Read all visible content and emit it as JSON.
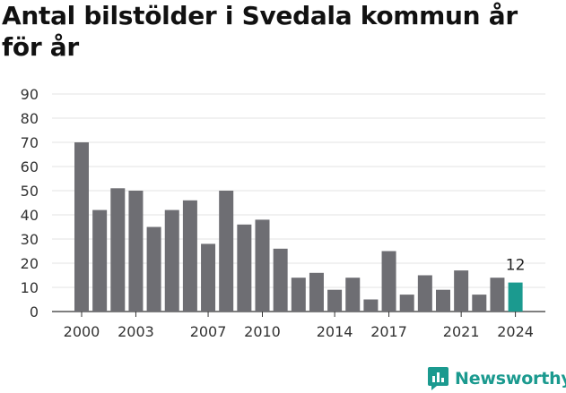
{
  "title": "Antal bilstölder i Svedala kommun år för år",
  "brand": {
    "name": "Newsworthy",
    "icon": "newsworthy-logo-icon",
    "color": "#1b9a8f"
  },
  "chart_data": {
    "type": "bar",
    "title": "Antal bilstölder i Svedala kommun år för år",
    "xlabel": "",
    "ylabel": "",
    "categories": [
      "2000",
      "2001",
      "2002",
      "2003",
      "2004",
      "2005",
      "2006",
      "2007",
      "2008",
      "2009",
      "2010",
      "2011",
      "2012",
      "2013",
      "2014",
      "2015",
      "2016",
      "2017",
      "2018",
      "2019",
      "2020",
      "2021",
      "2022",
      "2023",
      "2024"
    ],
    "values": [
      70,
      42,
      51,
      50,
      35,
      42,
      46,
      28,
      50,
      36,
      38,
      26,
      14,
      16,
      9,
      14,
      5,
      25,
      7,
      15,
      9,
      17,
      7,
      14,
      12
    ],
    "x_tick_labels": [
      "2000",
      "2003",
      "2007",
      "2010",
      "2014",
      "2017",
      "2021",
      "2024"
    ],
    "ylim": [
      0,
      90
    ],
    "y_ticks": [
      0,
      10,
      20,
      30,
      40,
      50,
      60,
      70,
      80,
      90
    ],
    "grid": true,
    "bar_color": "#6e6e73",
    "highlight_color": "#1b9a8f",
    "highlight_index": 24,
    "data_labels": [
      {
        "category": "2024",
        "text": "12"
      }
    ]
  }
}
